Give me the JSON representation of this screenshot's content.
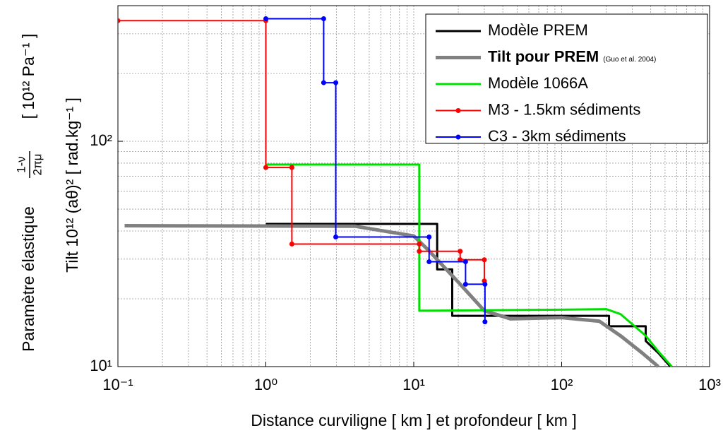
{
  "chart_data": {
    "type": "line",
    "xlabel": "Distance curviligne [ km ] et profondeur [ km ]",
    "ylabel": {
      "text": "Paramètre élastique",
      "numerator": "1-ν",
      "denominator": "2πμ",
      "unit": "[ 10¹² Pa⁻¹ ]"
    },
    "y2label": "Tilt 10¹² (aθ)² [ rad.kg⁻¹ ]",
    "xlog": true,
    "ylog": true,
    "grid": true,
    "minor_grid": true,
    "legend": "upper right",
    "xlim": [
      0.1,
      1000
    ],
    "ylim": [
      10,
      400
    ],
    "xticks": [
      {
        "value": 0.1,
        "label": "10⁻¹"
      },
      {
        "value": 1,
        "label": "10⁰"
      },
      {
        "value": 10,
        "label": "10¹"
      },
      {
        "value": 100,
        "label": "10²"
      },
      {
        "value": 1000,
        "label": "10³"
      }
    ],
    "yticks": [
      {
        "value": 10,
        "label": "10¹"
      },
      {
        "value": 100,
        "label": "10²"
      }
    ],
    "legend_note": "(Guo et al. 2004)",
    "series": [
      {
        "name": "Modèle PREM",
        "color": "#000000",
        "width": 3,
        "markers": false,
        "x": [
          1,
          14.4,
          14.4,
          18.2,
          18.2,
          209,
          209,
          370,
          370,
          450,
          543
        ],
        "values": [
          43,
          43,
          27,
          27,
          16.8,
          16.8,
          15.1,
          15.1,
          13,
          11.5,
          10
        ]
      },
      {
        "name": "Tilt pour PREM",
        "color": "#808080",
        "width": 5,
        "markers": false,
        "x": [
          0.111,
          4,
          10,
          12.6,
          20,
          30,
          45,
          100,
          180,
          250,
          350,
          450
        ],
        "values": [
          42.2,
          42,
          38,
          32.8,
          23.7,
          17.7,
          16.3,
          16.5,
          15.9,
          13.7,
          11.5,
          10
        ]
      },
      {
        "name": "Modèle 1066A",
        "color": "#00e000",
        "width": 3,
        "markers": false,
        "x": [
          1,
          10.9,
          10.9,
          100,
          200,
          250,
          370,
          460,
          556
        ],
        "values": [
          78.8,
          78.8,
          17.7,
          17.9,
          18,
          17.1,
          13.7,
          11.5,
          10
        ]
      },
      {
        "name": "M3 - 1.5km sédiments",
        "color": "#ff0000",
        "width": 2,
        "markers": true,
        "x": [
          0.1,
          1,
          1,
          1.5,
          1.5,
          10.9,
          10.9,
          20.6,
          20.6,
          30,
          30
        ],
        "values": [
          343,
          343,
          76.5,
          76.5,
          35,
          35,
          32.5,
          32.5,
          29.8,
          29.8,
          24
        ]
      },
      {
        "name": "C3 - 3km sédiments",
        "color": "#0000ff",
        "width": 2,
        "markers": true,
        "x": [
          1,
          2.46,
          2.46,
          2.97,
          2.97,
          12.7,
          12.7,
          22.4,
          22.4,
          30.3,
          30.3
        ],
        "values": [
          350,
          350,
          182,
          182,
          37.6,
          37.6,
          29.2,
          29.2,
          23.2,
          23.2,
          15.8
        ]
      }
    ]
  }
}
